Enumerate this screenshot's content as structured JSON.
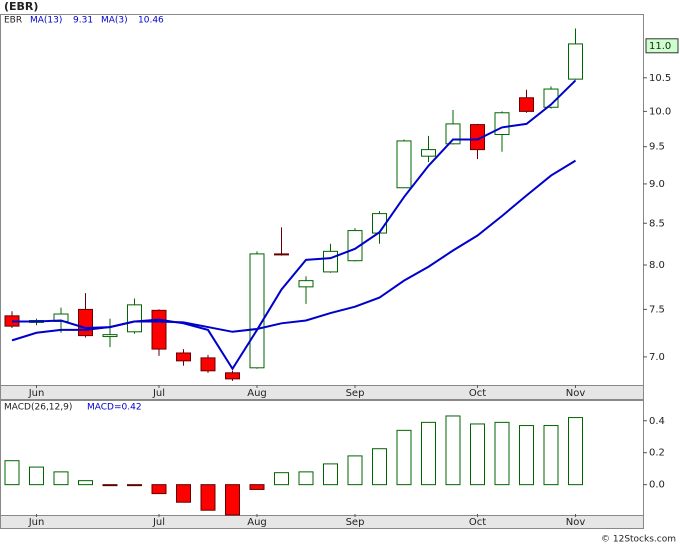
{
  "chart_data": [
    {
      "type": "candlestick",
      "title": "(EBR)",
      "ticker": "EBR",
      "categories": [
        null,
        "Jun",
        null,
        null,
        null,
        null,
        "Jul",
        null,
        null,
        null,
        "Aug",
        null,
        null,
        null,
        "Sep",
        null,
        null,
        null,
        null,
        "Oct",
        null,
        null,
        null,
        "Nov"
      ],
      "open": [
        7.43,
        7.36,
        7.37,
        7.5,
        7.21,
        7.26,
        7.49,
        7.04,
        6.99,
        6.84,
        6.89,
        8.13,
        7.75,
        7.92,
        8.05,
        8.38,
        8.95,
        9.37,
        9.54,
        9.81,
        9.67,
        10.2,
        10.06,
        10.48
      ],
      "high": [
        7.48,
        7.4,
        7.52,
        7.68,
        7.4,
        7.62,
        7.5,
        7.08,
        7.02,
        6.86,
        8.16,
        8.45,
        7.87,
        8.25,
        8.44,
        8.65,
        9.6,
        9.65,
        10.02,
        9.82,
        10.0,
        10.32,
        10.37,
        11.28
      ],
      "low": [
        7.3,
        7.33,
        7.25,
        7.2,
        7.1,
        7.24,
        7.01,
        6.91,
        6.84,
        6.76,
        6.88,
        8.11,
        7.56,
        7.91,
        8.04,
        8.25,
        8.95,
        9.29,
        9.53,
        9.33,
        9.43,
        9.98,
        10.04,
        10.47
      ],
      "close": [
        7.32,
        7.38,
        7.45,
        7.22,
        7.23,
        7.55,
        7.08,
        6.96,
        6.86,
        6.78,
        8.13,
        8.12,
        7.82,
        8.16,
        8.41,
        8.62,
        9.58,
        9.46,
        9.82,
        9.46,
        9.98,
        10.0,
        10.33,
        11.03
      ],
      "series": [
        {
          "name": "MA(13)",
          "legend_value": 9.31,
          "color": "#0000cc",
          "values": [
            7.17,
            7.25,
            7.28,
            7.28,
            7.31,
            7.37,
            7.37,
            7.36,
            7.31,
            7.26,
            7.29,
            7.35,
            7.38,
            7.46,
            7.53,
            7.63,
            7.82,
            7.98,
            8.17,
            8.35,
            8.59,
            8.85,
            9.11,
            9.31
          ]
        },
        {
          "name": "MA(3)",
          "legend_value": 10.46,
          "color": "#0000cc",
          "values": [
            7.37,
            7.37,
            7.38,
            7.3,
            7.31,
            7.37,
            7.39,
            7.35,
            7.28,
            6.88,
            7.28,
            7.72,
            8.06,
            8.08,
            8.19,
            8.39,
            8.83,
            9.24,
            9.6,
            9.6,
            9.77,
            9.82,
            10.1,
            10.46
          ]
        }
      ],
      "ylim": [
        6.72,
        11.52
      ],
      "log_scale": true,
      "yticks": [
        {
          "value": 7,
          "label": "7.0"
        },
        {
          "value": 7.5,
          "label": "7.5"
        },
        {
          "value": 8,
          "label": "8.0"
        },
        {
          "value": 8.5,
          "label": "8.5"
        },
        {
          "value": 9,
          "label": "9.0"
        },
        {
          "value": 9.5,
          "label": "9.5"
        },
        {
          "value": 10,
          "label": "10.0"
        },
        {
          "value": 10.5,
          "label": "10.5"
        }
      ],
      "price_box": {
        "value": 11,
        "label": "11.0"
      },
      "up_color": "#ffffff",
      "up_edge": "#006400",
      "down_color": "#ff0000",
      "down_edge": "#660000"
    },
    {
      "type": "bar",
      "title": "MACD(26,12,9)",
      "legend": "MACD=0.42",
      "categories": [
        null,
        "Jun",
        null,
        null,
        null,
        null,
        "Jul",
        null,
        null,
        null,
        "Aug",
        null,
        null,
        null,
        "Sep",
        null,
        null,
        null,
        null,
        "Oct",
        null,
        null,
        null,
        "Nov"
      ],
      "values": [
        0.15,
        0.11,
        0.08,
        0.025,
        -0.006,
        -0.003,
        -0.056,
        -0.11,
        -0.16,
        -0.2,
        -0.03,
        0.075,
        0.08,
        0.13,
        0.18,
        0.225,
        0.34,
        0.39,
        0.43,
        0.38,
        0.39,
        0.37,
        0.37,
        0.42
      ],
      "ylim": [
        -0.19,
        0.53
      ],
      "yticks": [
        {
          "value": 0,
          "label": "0.0"
        },
        {
          "value": 0.2,
          "label": "0.2"
        },
        {
          "value": 0.4,
          "label": "0.4"
        }
      ],
      "up_color": "#ffffff",
      "up_edge": "#006400",
      "down_color": "#ff0000",
      "down_edge": "#660000"
    }
  ],
  "footer": "© 12Stocks.com"
}
